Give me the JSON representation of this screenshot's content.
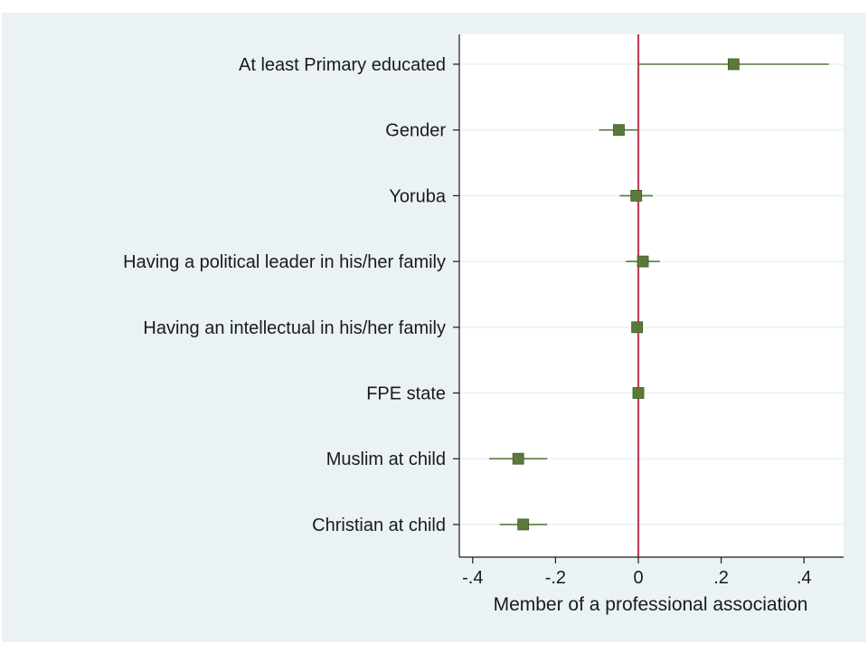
{
  "colors": {
    "background": "#eaf2f3",
    "plot_background": "#ffffff",
    "marker": "#5a7a3a",
    "ci_line": "#5a7a3a",
    "reference_line": "#c0405a",
    "gridline": "#eaf2f3"
  },
  "chart_data": {
    "type": "scatter",
    "subtype": "coefficient-plot",
    "xlabel": "Member of a professional association",
    "xlim": [
      -0.42,
      0.5
    ],
    "x_ticks": [
      -0.4,
      -0.2,
      0,
      0.2,
      0.4
    ],
    "x_tick_labels": [
      "-.4",
      "-.2",
      "0",
      ".2",
      ".4"
    ],
    "reference_x": 0,
    "grid": true,
    "categories": [
      "At least Primary educated",
      "Gender",
      "Yoruba",
      "Having a political leader in his/her family",
      "Having an intellectual in his/her family",
      "FPE state",
      "Muslim at child",
      "Christian at child"
    ],
    "estimates": [
      0.23,
      -0.047,
      -0.005,
      0.011,
      -0.003,
      0.0,
      -0.29,
      -0.278
    ],
    "ci_low": [
      0.0,
      -0.095,
      -0.045,
      -0.03,
      -0.003,
      0.0,
      -0.36,
      -0.335
    ],
    "ci_high": [
      0.46,
      0.0,
      0.035,
      0.052,
      -0.003,
      0.0,
      -0.22,
      -0.22
    ]
  }
}
